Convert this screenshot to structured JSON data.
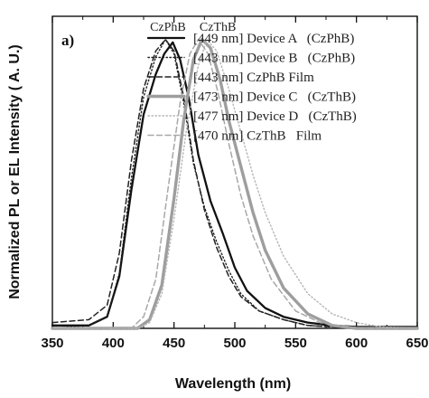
{
  "chart_data": {
    "type": "line",
    "panel_label": "a)",
    "title": "",
    "xlabel": "Wavelength (nm)",
    "ylabel": "Normalized PL or EL Intensity ( A. U.)",
    "xlim": [
      350,
      650
    ],
    "ylim": [
      0,
      1.08
    ],
    "x_ticks": [
      350,
      400,
      450,
      500,
      550,
      600,
      650
    ],
    "grid": false,
    "legend_position": "top-right",
    "annotations": [
      {
        "text": "CzPhB",
        "x": 445,
        "y": 1.03
      },
      {
        "text": "CzThB",
        "x": 486,
        "y": 1.03
      }
    ],
    "series": [
      {
        "name": "[449 nm] Device A   (CzPhB)",
        "color": "#111111",
        "style": "solid",
        "x": [
          350,
          380,
          395,
          405,
          415,
          425,
          435,
          442,
          449,
          455,
          462,
          470,
          480,
          490,
          500,
          510,
          525,
          540,
          560,
          580,
          600,
          650
        ],
        "y": [
          0.01,
          0.01,
          0.04,
          0.18,
          0.48,
          0.74,
          0.88,
          0.95,
          0.99,
          0.93,
          0.8,
          0.6,
          0.44,
          0.33,
          0.21,
          0.13,
          0.07,
          0.04,
          0.02,
          0.01,
          0.005,
          0.005
        ]
      },
      {
        "name": "[443 nm] Device B   (CzPhB)",
        "color": "#222222",
        "style": "dotted",
        "x": [
          350,
          380,
          395,
          405,
          415,
          425,
          435,
          443,
          450,
          458,
          466,
          475,
          485,
          495,
          505,
          520,
          540,
          560,
          580,
          600,
          650
        ],
        "y": [
          0.0,
          0.01,
          0.04,
          0.19,
          0.52,
          0.8,
          0.94,
          1.0,
          0.95,
          0.78,
          0.57,
          0.42,
          0.3,
          0.2,
          0.12,
          0.06,
          0.03,
          0.01,
          0.005,
          0.0,
          0.0
        ]
      },
      {
        "name": "[443 nm] CzPhB Film",
        "color": "#222222",
        "style": "dashed",
        "x": [
          350,
          380,
          395,
          405,
          415,
          425,
          435,
          443,
          450,
          458,
          466,
          475,
          485,
          495,
          505,
          520,
          540,
          560,
          580,
          600,
          650
        ],
        "y": [
          0.02,
          0.03,
          0.08,
          0.26,
          0.58,
          0.83,
          0.96,
          1.0,
          0.96,
          0.8,
          0.58,
          0.41,
          0.28,
          0.18,
          0.11,
          0.06,
          0.03,
          0.01,
          0.005,
          0.0,
          0.0
        ]
      },
      {
        "name": "[473 nm] Device C   (CzThB)",
        "color": "#9e9e9e",
        "style": "solid-thick",
        "x": [
          350,
          420,
          430,
          440,
          450,
          458,
          466,
          473,
          480,
          488,
          495,
          505,
          515,
          525,
          540,
          560,
          580,
          600,
          650
        ],
        "y": [
          0.0,
          0.0,
          0.03,
          0.15,
          0.45,
          0.72,
          0.93,
          1.0,
          0.97,
          0.86,
          0.72,
          0.56,
          0.4,
          0.27,
          0.14,
          0.05,
          0.01,
          0.0,
          0.0
        ]
      },
      {
        "name": "[477 nm] Device D   (CzThB)",
        "color": "#b5b5b5",
        "style": "dotted",
        "x": [
          350,
          420,
          430,
          440,
          450,
          460,
          470,
          477,
          485,
          495,
          505,
          515,
          525,
          540,
          560,
          580,
          600,
          620,
          650
        ],
        "y": [
          0.0,
          0.0,
          0.02,
          0.12,
          0.38,
          0.68,
          0.91,
          1.0,
          0.96,
          0.83,
          0.68,
          0.53,
          0.4,
          0.25,
          0.12,
          0.05,
          0.02,
          0.005,
          0.0
        ]
      },
      {
        "name": "[470 nm] CzThB   Film",
        "color": "#a8a8a8",
        "style": "dashed",
        "x": [
          350,
          415,
          425,
          435,
          445,
          455,
          463,
          470,
          478,
          486,
          495,
          505,
          515,
          530,
          550,
          570,
          600,
          650
        ],
        "y": [
          0.0,
          0.0,
          0.04,
          0.17,
          0.48,
          0.78,
          0.95,
          1.0,
          0.95,
          0.82,
          0.64,
          0.46,
          0.32,
          0.17,
          0.06,
          0.02,
          0.0,
          0.0
        ]
      }
    ]
  }
}
